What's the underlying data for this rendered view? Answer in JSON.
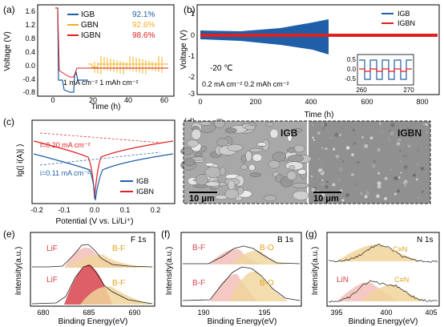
{
  "colors": {
    "igb": "#1f5fa8",
    "gbn": "#f2b01e",
    "igbn": "#e02020",
    "lif": "#d9434b",
    "bf": "#e3a21a",
    "bo": "#e3a21a",
    "cn": "#e3a21a",
    "lin": "#d9434b",
    "axis": "#000000"
  },
  "panels": {
    "a": {
      "label": "(a)",
      "ylabel": "Voltage (V)",
      "xlabel": "Time (h)",
      "yticks": [
        "1.6",
        "1.2",
        "0.8",
        "0.4",
        "0.0",
        "-0.4",
        "-0.8"
      ],
      "xticks": [
        "0",
        "20",
        "40",
        "60"
      ],
      "legend": [
        {
          "name": "IGB",
          "value": "92.1%"
        },
        {
          "name": "GBN",
          "value": "92.6%"
        },
        {
          "name": "IGBN",
          "value": "98.6%"
        }
      ],
      "note": "1 mA cm⁻² 1 mAh cm⁻²"
    },
    "b": {
      "label": "(b)",
      "ylabel": "Voltage (V)",
      "xlabel": "Time (h)",
      "yticks": [
        "1",
        "0",
        "-1",
        "-2",
        "-3"
      ],
      "xticks": [
        "0",
        "200",
        "400",
        "600",
        "800"
      ],
      "legend": [
        "IGB",
        "IGBN"
      ],
      "temp": "-20 ℃",
      "cond": "0.2 mA cm⁻² 0.2 mAh cm⁻²",
      "inset": {
        "yticks": [
          "0.5",
          "0.0",
          "-0.5"
        ],
        "xticks": [
          "260",
          "270"
        ]
      }
    },
    "c": {
      "label": "(c)",
      "ylabel": "lg(| i(A)| )",
      "xlabel": "Potential (V vs. Li/Li⁺)",
      "xticks": [
        "-0.2",
        "-0.1",
        "0.0",
        "0.1",
        "0.2"
      ],
      "legend": [
        "IGB",
        "IGBN"
      ],
      "i_igbn": "i=0.20 mA cm⁻²",
      "i_igb": "i=0.11 mA cm⁻²"
    },
    "d": {
      "label": "(d)",
      "left_title": "IGB",
      "right_title": "IGBN",
      "scale": "10 μm"
    },
    "e": {
      "label": "(e)",
      "ylabel": "Intensity(a.u.)",
      "xlabel": "Binding Energy(eV)",
      "element": "F 1s",
      "xticks": [
        "680",
        "685",
        "690"
      ],
      "peaks": [
        "LiF",
        "B-F"
      ]
    },
    "f": {
      "label": "(f)",
      "ylabel": "Intensity(a.u.)",
      "xlabel": "Binding Energy(eV)",
      "element": "B 1s",
      "xticks": [
        "190",
        "195"
      ],
      "peaks": [
        "B-F",
        "B-O"
      ]
    },
    "g": {
      "label": "(g)",
      "ylabel": "Intensity(a.u.)",
      "xlabel": "Binding Energy(eV)",
      "element": "N 1s",
      "xticks": [
        "395",
        "400",
        "405"
      ],
      "peaks_top": [
        "C≡N"
      ],
      "peaks_bottom": [
        "LiN",
        "C≡N"
      ]
    }
  }
}
